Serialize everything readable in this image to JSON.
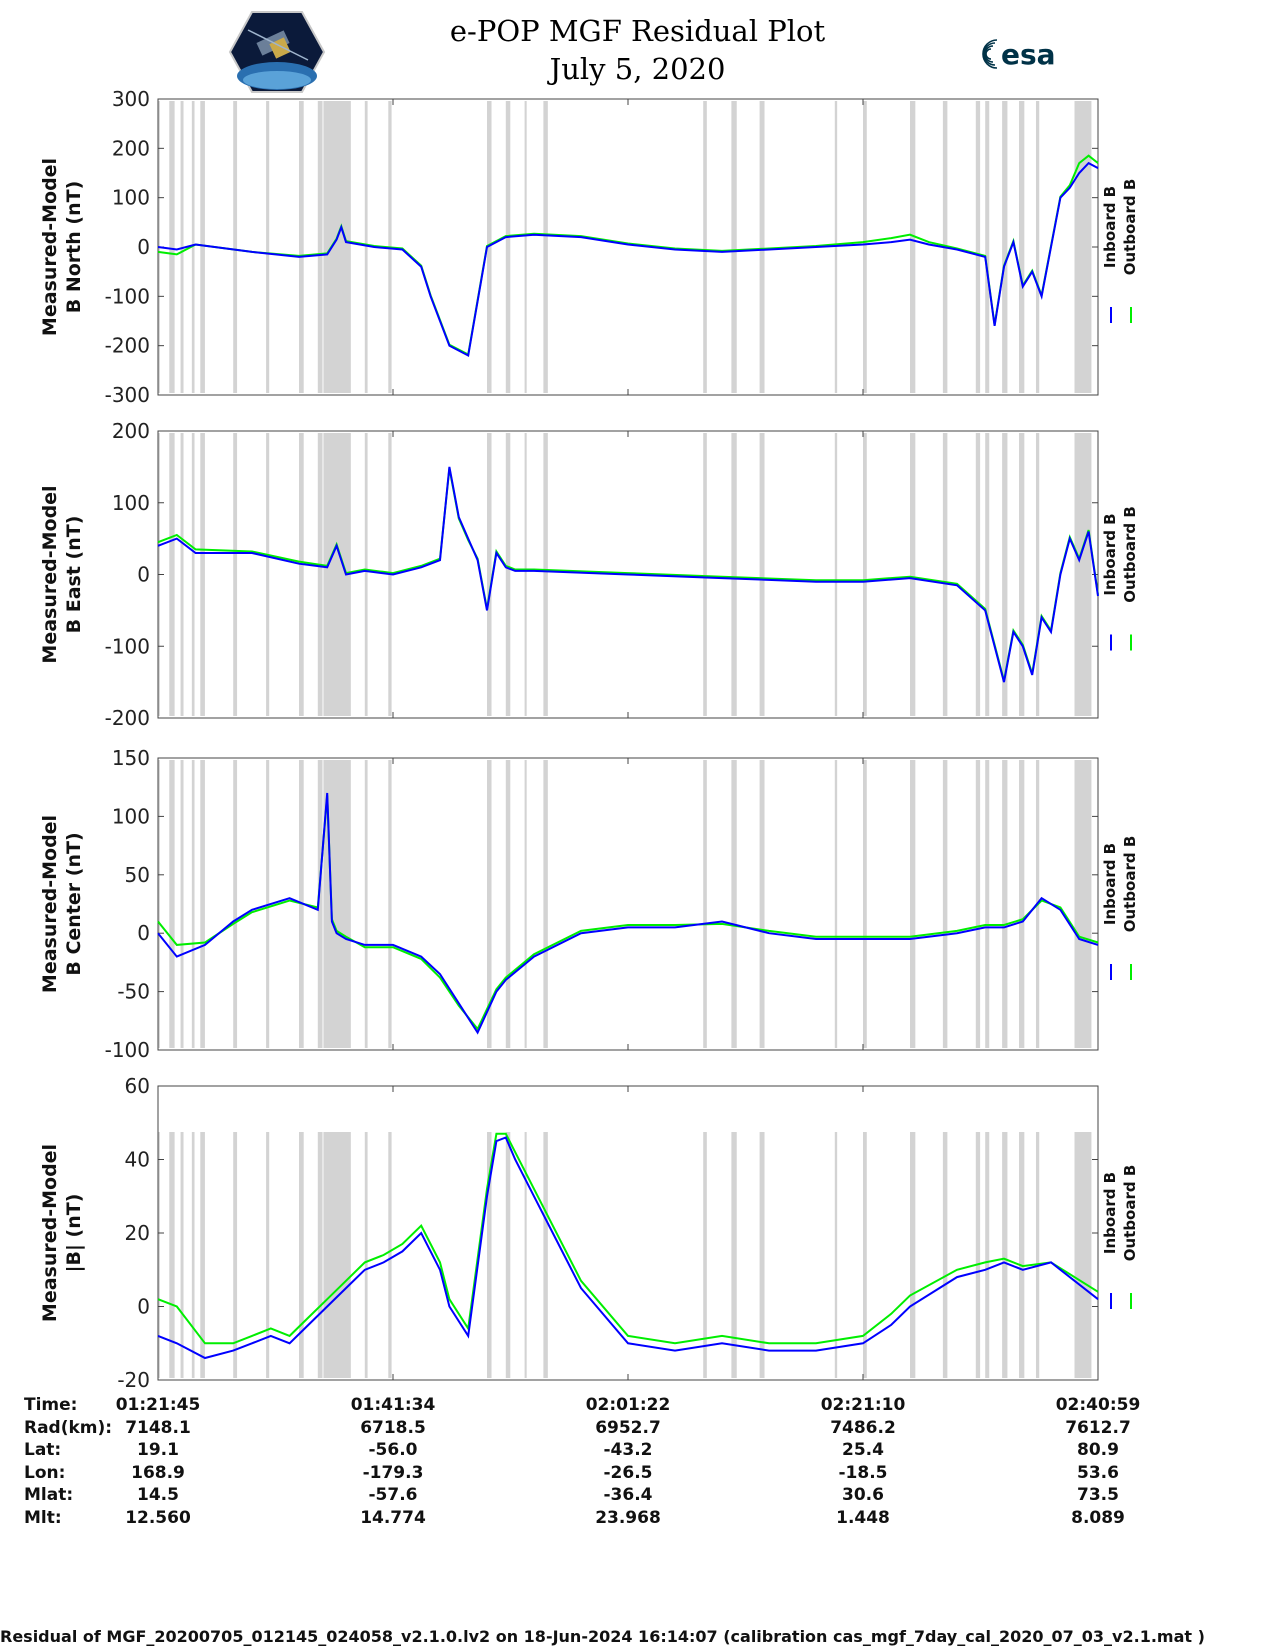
{
  "header": {
    "title": "e-POP MGF Residual Plot",
    "date": "July 5, 2020",
    "logo_left": "cassiope-satellite-logo",
    "logo_right": "esa"
  },
  "colors": {
    "inboard": "#0000ff",
    "outboard": "#00ee00",
    "gap": "#d3d3d3"
  },
  "chart_data": [
    {
      "type": "line",
      "title": "",
      "ylabel": [
        "Measured-Model",
        "B North (nT)"
      ],
      "ylim": [
        -300,
        300
      ],
      "yticks": [
        300,
        200,
        100,
        0,
        -100,
        -200,
        -300
      ],
      "legend": [
        "Inboard B",
        "Outboard B"
      ],
      "x": [
        0,
        0.02,
        0.04,
        0.1,
        0.15,
        0.18,
        0.19,
        0.195,
        0.2,
        0.23,
        0.26,
        0.28,
        0.29,
        0.31,
        0.33,
        0.35,
        0.37,
        0.4,
        0.45,
        0.5,
        0.55,
        0.6,
        0.65,
        0.7,
        0.75,
        0.78,
        0.8,
        0.82,
        0.85,
        0.88,
        0.89,
        0.9,
        0.91,
        0.92,
        0.93,
        0.94,
        0.95,
        0.96,
        0.97,
        0.98,
        0.99,
        1.0
      ],
      "series": [
        {
          "name": "Inboard B",
          "values": [
            0,
            -5,
            5,
            -10,
            -20,
            -15,
            15,
            40,
            10,
            0,
            -5,
            -40,
            -100,
            -200,
            -220,
            0,
            20,
            25,
            20,
            5,
            -5,
            -10,
            -5,
            0,
            5,
            10,
            15,
            5,
            -5,
            -20,
            -160,
            -40,
            10,
            -80,
            -50,
            -100,
            0,
            100,
            120,
            150,
            170,
            160
          ]
        },
        {
          "name": "Outboard B",
          "values": [
            -10,
            -15,
            5,
            -10,
            -18,
            -13,
            17,
            42,
            12,
            2,
            -3,
            -38,
            -98,
            -198,
            -218,
            2,
            22,
            27,
            22,
            7,
            -3,
            -8,
            -3,
            2,
            10,
            18,
            25,
            10,
            -3,
            -18,
            -158,
            -38,
            12,
            -78,
            -48,
            -98,
            2,
            102,
            125,
            170,
            185,
            170
          ]
        }
      ]
    },
    {
      "type": "line",
      "title": "",
      "ylabel": [
        "Measured-Model",
        "B East (nT)"
      ],
      "ylim": [
        -200,
        200
      ],
      "yticks": [
        200,
        100,
        0,
        -100,
        -200
      ],
      "legend": [
        "Inboard B",
        "Outboard B"
      ],
      "x": [
        0,
        0.02,
        0.04,
        0.1,
        0.15,
        0.18,
        0.19,
        0.2,
        0.22,
        0.25,
        0.28,
        0.3,
        0.31,
        0.32,
        0.33,
        0.34,
        0.35,
        0.36,
        0.37,
        0.38,
        0.4,
        0.5,
        0.6,
        0.7,
        0.75,
        0.8,
        0.85,
        0.88,
        0.9,
        0.91,
        0.92,
        0.93,
        0.94,
        0.95,
        0.96,
        0.97,
        0.98,
        0.99,
        1.0
      ],
      "series": [
        {
          "name": "Inboard B",
          "values": [
            40,
            50,
            30,
            30,
            15,
            10,
            40,
            0,
            5,
            0,
            10,
            20,
            150,
            80,
            50,
            20,
            -50,
            30,
            10,
            5,
            5,
            0,
            -5,
            -10,
            -10,
            -5,
            -15,
            -50,
            -150,
            -80,
            -100,
            -140,
            -60,
            -80,
            0,
            50,
            20,
            60,
            -30
          ]
        },
        {
          "name": "Outboard B",
          "values": [
            45,
            55,
            35,
            32,
            18,
            12,
            42,
            2,
            7,
            2,
            12,
            22,
            148,
            78,
            48,
            22,
            -48,
            32,
            12,
            7,
            7,
            2,
            -3,
            -8,
            -8,
            -3,
            -13,
            -48,
            -148,
            -78,
            -98,
            -138,
            -58,
            -78,
            2,
            52,
            22,
            62,
            -28
          ]
        }
      ]
    },
    {
      "type": "line",
      "title": "",
      "ylabel": [
        "Measured-Model",
        "B Center (nT)"
      ],
      "ylim": [
        -100,
        150
      ],
      "yticks": [
        150,
        100,
        50,
        0,
        -50,
        -100
      ],
      "legend": [
        "Inboard B",
        "Outboard B"
      ],
      "x": [
        0,
        0.02,
        0.05,
        0.08,
        0.1,
        0.14,
        0.17,
        0.18,
        0.185,
        0.19,
        0.2,
        0.22,
        0.25,
        0.28,
        0.3,
        0.32,
        0.34,
        0.36,
        0.37,
        0.4,
        0.45,
        0.5,
        0.55,
        0.6,
        0.65,
        0.7,
        0.75,
        0.8,
        0.85,
        0.88,
        0.9,
        0.92,
        0.94,
        0.96,
        0.98,
        1.0
      ],
      "series": [
        {
          "name": "Inboard B",
          "values": [
            0,
            -20,
            -10,
            10,
            20,
            30,
            20,
            120,
            10,
            0,
            -5,
            -10,
            -10,
            -20,
            -35,
            -60,
            -85,
            -50,
            -40,
            -20,
            0,
            5,
            5,
            10,
            0,
            -5,
            -5,
            -5,
            0,
            5,
            5,
            10,
            30,
            20,
            -5,
            -10
          ]
        },
        {
          "name": "Outboard B",
          "values": [
            10,
            -10,
            -8,
            8,
            18,
            28,
            22,
            118,
            12,
            2,
            -3,
            -12,
            -12,
            -22,
            -38,
            -62,
            -82,
            -48,
            -38,
            -18,
            2,
            7,
            7,
            8,
            2,
            -3,
            -3,
            -3,
            2,
            7,
            7,
            12,
            28,
            22,
            -3,
            -8
          ]
        }
      ]
    },
    {
      "type": "line",
      "title": "",
      "ylabel": [
        "Measured-Model",
        "|B| (nT)"
      ],
      "ylim": [
        -20,
        60
      ],
      "yticks": [
        60,
        40,
        20,
        0,
        -20
      ],
      "legend": [
        "Inboard B",
        "Outboard B"
      ],
      "x": [
        0,
        0.02,
        0.05,
        0.08,
        0.1,
        0.12,
        0.14,
        0.16,
        0.18,
        0.2,
        0.22,
        0.24,
        0.26,
        0.28,
        0.3,
        0.31,
        0.33,
        0.35,
        0.36,
        0.37,
        0.38,
        0.4,
        0.42,
        0.45,
        0.5,
        0.55,
        0.6,
        0.65,
        0.7,
        0.75,
        0.78,
        0.8,
        0.85,
        0.88,
        0.9,
        0.92,
        0.95,
        1.0
      ],
      "series": [
        {
          "name": "Inboard B",
          "values": [
            -8,
            -10,
            -14,
            -12,
            -10,
            -8,
            -10,
            -5,
            0,
            5,
            10,
            12,
            15,
            20,
            10,
            0,
            -8,
            30,
            45,
            46,
            40,
            30,
            20,
            5,
            -10,
            -12,
            -10,
            -12,
            -12,
            -10,
            -5,
            0,
            8,
            10,
            12,
            10,
            12,
            2
          ]
        },
        {
          "name": "Outboard B",
          "values": [
            2,
            0,
            -10,
            -10,
            -8,
            -6,
            -8,
            -3,
            2,
            7,
            12,
            14,
            17,
            22,
            12,
            2,
            -6,
            32,
            47,
            47,
            42,
            32,
            22,
            7,
            -8,
            -10,
            -8,
            -10,
            -10,
            -8,
            -2,
            3,
            10,
            12,
            13,
            11,
            12,
            4
          ]
        }
      ]
    }
  ],
  "xticks": [
    "01:21:45",
    "01:41:34",
    "02:01:22",
    "02:21:10",
    "02:40:59"
  ],
  "info_table": [
    {
      "label": "Time:",
      "values": [
        "01:21:45",
        "01:41:34",
        "02:01:22",
        "02:21:10",
        "02:40:59"
      ]
    },
    {
      "label": "Rad(km):",
      "values": [
        "7148.1",
        "6718.5",
        "6952.7",
        "7486.2",
        "7612.7"
      ]
    },
    {
      "label": "Lat:",
      "values": [
        "19.1",
        "-56.0",
        "-43.2",
        "25.4",
        "80.9"
      ]
    },
    {
      "label": "Lon:",
      "values": [
        "168.9",
        "-179.3",
        "-26.5",
        "-18.5",
        "53.6"
      ]
    },
    {
      "label": "Mlat:",
      "values": [
        "14.5",
        "-57.6",
        "-36.4",
        "30.6",
        "73.5"
      ]
    },
    {
      "label": "Mlt:",
      "values": [
        "12.560",
        "14.774",
        "23.968",
        "1.448",
        "8.089"
      ]
    }
  ],
  "footer": "Residual of MGF_20200705_012145_024058_v2.1.0.lv2 on 18-Jun-2024 16:14:07 (calibration cas_mgf_7day_cal_2020_07_03_v2.1.mat )"
}
